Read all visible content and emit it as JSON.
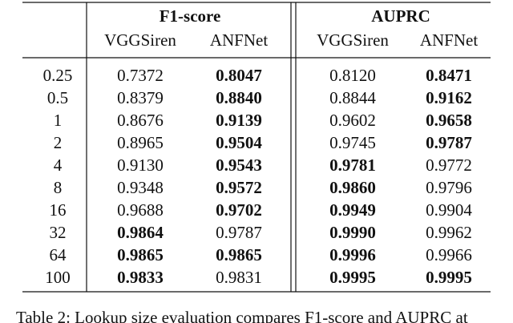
{
  "table": {
    "groups": [
      "F1-score",
      "AUPRC"
    ],
    "columns": [
      "VGGSiren",
      "ANFNet",
      "VGGSiren",
      "ANFNet"
    ],
    "rows": [
      {
        "label": "0.25",
        "cells": [
          {
            "text": "0.7372",
            "bold": false
          },
          {
            "text": "0.8047",
            "bold": true
          },
          {
            "text": "0.8120",
            "bold": false
          },
          {
            "text": "0.8471",
            "bold": true
          }
        ]
      },
      {
        "label": "0.5",
        "cells": [
          {
            "text": "0.8379",
            "bold": false
          },
          {
            "text": "0.8840",
            "bold": true
          },
          {
            "text": "0.8844",
            "bold": false
          },
          {
            "text": "0.9162",
            "bold": true
          }
        ]
      },
      {
        "label": "1",
        "cells": [
          {
            "text": "0.8676",
            "bold": false
          },
          {
            "text": "0.9139",
            "bold": true
          },
          {
            "text": "0.9602",
            "bold": false
          },
          {
            "text": "0.9658",
            "bold": true
          }
        ]
      },
      {
        "label": "2",
        "cells": [
          {
            "text": "0.8965",
            "bold": false
          },
          {
            "text": "0.9504",
            "bold": true
          },
          {
            "text": "0.9745",
            "bold": false
          },
          {
            "text": "0.9787",
            "bold": true
          }
        ]
      },
      {
        "label": "4",
        "cells": [
          {
            "text": "0.9130",
            "bold": false
          },
          {
            "text": "0.9543",
            "bold": true
          },
          {
            "text": "0.9781",
            "bold": true
          },
          {
            "text": "0.9772",
            "bold": false
          }
        ]
      },
      {
        "label": "8",
        "cells": [
          {
            "text": "0.9348",
            "bold": false
          },
          {
            "text": "0.9572",
            "bold": true
          },
          {
            "text": "0.9860",
            "bold": true
          },
          {
            "text": "0.9796",
            "bold": false
          }
        ]
      },
      {
        "label": "16",
        "cells": [
          {
            "text": "0.9688",
            "bold": false
          },
          {
            "text": "0.9702",
            "bold": true
          },
          {
            "text": "0.9949",
            "bold": true
          },
          {
            "text": "0.9904",
            "bold": false
          }
        ]
      },
      {
        "label": "32",
        "cells": [
          {
            "text": "0.9864",
            "bold": true
          },
          {
            "text": "0.9787",
            "bold": false
          },
          {
            "text": "0.9990",
            "bold": true
          },
          {
            "text": "0.9962",
            "bold": false
          }
        ]
      },
      {
        "label": "64",
        "cells": [
          {
            "text": "0.9865",
            "bold": true
          },
          {
            "text": "0.9865",
            "bold": true
          },
          {
            "text": "0.9996",
            "bold": true
          },
          {
            "text": "0.9966",
            "bold": false
          }
        ]
      },
      {
        "label": "100",
        "cells": [
          {
            "text": "0.9833",
            "bold": true
          },
          {
            "text": "0.9831",
            "bold": false
          },
          {
            "text": "0.9995",
            "bold": true
          },
          {
            "text": "0.9995",
            "bold": true
          }
        ]
      }
    ],
    "caption": "Table 2: Lookup size evaluation compares F1-score and AUPRC at"
  }
}
